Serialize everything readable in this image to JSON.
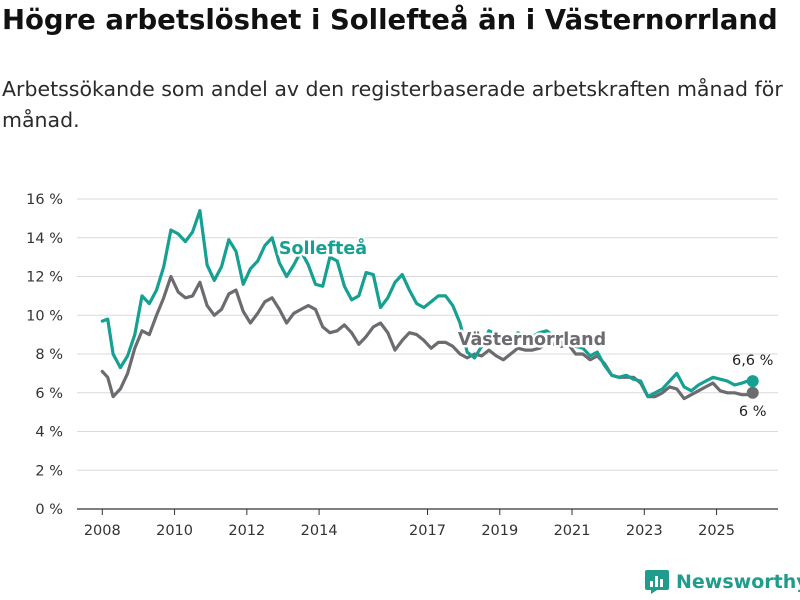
{
  "title": "Högre arbetslöshet i Sollefteå än i Västernorrland",
  "subtitle": "Arbetssökande som andel av den registerbaserade arbetskraften månad för månad.",
  "brand": {
    "name": "Newsworthy",
    "icon": "bar-chart-logo-icon"
  },
  "colors": {
    "solleftea": "#16a091",
    "vasternorrland": "#6b6b70",
    "grid": "#d9d9d9",
    "axis": "#333333"
  },
  "chart_data": {
    "type": "line",
    "title": "Högre arbetslöshet i Sollefteå än i Västernorrland",
    "xlabel": "",
    "ylabel": "",
    "ylim": [
      0,
      16
    ],
    "xlim": [
      2007.3,
      2026.7
    ],
    "y_ticks": [
      0,
      2,
      4,
      6,
      8,
      10,
      12,
      14,
      16
    ],
    "y_tick_labels": [
      "0 %",
      "2 %",
      "4 %",
      "6 %",
      "8 %",
      "10 %",
      "12 %",
      "14 %",
      "16 %"
    ],
    "x_ticks": [
      2008,
      2010,
      2012,
      2014,
      2017,
      2019,
      2021,
      2023,
      2025
    ],
    "x_tick_labels": [
      "2008",
      "2010",
      "2012",
      "2014",
      "2017",
      "2019",
      "2021",
      "2023",
      "2025"
    ],
    "grid": true,
    "series": [
      {
        "name": "Sollefteå",
        "label": "Sollefteå",
        "end_label": "6,6 %",
        "x": [
          2008.0,
          2008.15,
          2008.3,
          2008.5,
          2008.7,
          2008.9,
          2009.1,
          2009.3,
          2009.5,
          2009.7,
          2009.9,
          2010.1,
          2010.3,
          2010.5,
          2010.7,
          2010.9,
          2011.1,
          2011.3,
          2011.5,
          2011.7,
          2011.9,
          2012.1,
          2012.3,
          2012.5,
          2012.7,
          2012.9,
          2013.1,
          2013.3,
          2013.5,
          2013.7,
          2013.9,
          2014.1,
          2014.3,
          2014.5,
          2014.7,
          2014.9,
          2015.1,
          2015.3,
          2015.5,
          2015.7,
          2015.9,
          2016.1,
          2016.3,
          2016.5,
          2016.7,
          2016.9,
          2017.1,
          2017.3,
          2017.5,
          2017.7,
          2017.9,
          2018.1,
          2018.3,
          2018.5,
          2018.7,
          2018.9,
          2019.1,
          2019.3,
          2019.5,
          2019.7,
          2019.9,
          2020.1,
          2020.3,
          2020.5,
          2020.7,
          2020.9,
          2021.1,
          2021.3,
          2021.5,
          2021.7,
          2021.9,
          2022.1,
          2022.3,
          2022.5,
          2022.7,
          2022.9,
          2023.1,
          2023.3,
          2023.5,
          2023.7,
          2023.9,
          2024.1,
          2024.3,
          2024.5,
          2024.7,
          2024.9,
          2025.1,
          2025.3,
          2025.5,
          2025.7,
          2025.85,
          2026.0
        ],
        "values": [
          9.7,
          9.8,
          8.0,
          7.3,
          7.9,
          9.0,
          11.0,
          10.6,
          11.3,
          12.5,
          14.4,
          14.2,
          13.8,
          14.3,
          15.4,
          12.6,
          11.8,
          12.5,
          13.9,
          13.3,
          11.6,
          12.4,
          12.8,
          13.6,
          14.0,
          12.7,
          12.0,
          12.6,
          13.3,
          12.6,
          11.6,
          11.5,
          13.0,
          12.8,
          11.5,
          10.8,
          11.0,
          12.2,
          12.1,
          10.4,
          10.9,
          11.7,
          12.1,
          11.3,
          10.6,
          10.4,
          10.7,
          11.0,
          11.0,
          10.5,
          9.6,
          8.1,
          7.8,
          8.4,
          9.2,
          9.0,
          8.7,
          8.8,
          9.1,
          8.9,
          8.9,
          9.1,
          9.2,
          8.9,
          8.6,
          8.5,
          8.4,
          8.3,
          7.9,
          8.1,
          7.4,
          6.9,
          6.8,
          6.9,
          6.7,
          6.6,
          5.8,
          6.0,
          6.2,
          6.6,
          7.0,
          6.3,
          6.1,
          6.4,
          6.6,
          6.8,
          6.7,
          6.6,
          6.4,
          6.5,
          6.6,
          6.6
        ]
      },
      {
        "name": "Västernorrland",
        "label": "Västernorrland",
        "end_label": "6 %",
        "x": [
          2008.0,
          2008.15,
          2008.3,
          2008.5,
          2008.7,
          2008.9,
          2009.1,
          2009.3,
          2009.5,
          2009.7,
          2009.9,
          2010.1,
          2010.3,
          2010.5,
          2010.7,
          2010.9,
          2011.1,
          2011.3,
          2011.5,
          2011.7,
          2011.9,
          2012.1,
          2012.3,
          2012.5,
          2012.7,
          2012.9,
          2013.1,
          2013.3,
          2013.5,
          2013.7,
          2013.9,
          2014.1,
          2014.3,
          2014.5,
          2014.7,
          2014.9,
          2015.1,
          2015.3,
          2015.5,
          2015.7,
          2015.9,
          2016.1,
          2016.3,
          2016.5,
          2016.7,
          2016.9,
          2017.1,
          2017.3,
          2017.5,
          2017.7,
          2017.9,
          2018.1,
          2018.3,
          2018.5,
          2018.7,
          2018.9,
          2019.1,
          2019.3,
          2019.5,
          2019.7,
          2019.9,
          2020.1,
          2020.3,
          2020.5,
          2020.7,
          2020.9,
          2021.1,
          2021.3,
          2021.5,
          2021.7,
          2021.9,
          2022.1,
          2022.3,
          2022.5,
          2022.7,
          2022.9,
          2023.1,
          2023.3,
          2023.5,
          2023.7,
          2023.9,
          2024.1,
          2024.3,
          2024.5,
          2024.7,
          2024.9,
          2025.1,
          2025.3,
          2025.5,
          2025.7,
          2025.85,
          2026.0
        ],
        "values": [
          7.1,
          6.8,
          5.8,
          6.2,
          7.0,
          8.3,
          9.2,
          9.0,
          10.0,
          10.9,
          12.0,
          11.2,
          10.9,
          11.0,
          11.7,
          10.5,
          10.0,
          10.3,
          11.1,
          11.3,
          10.2,
          9.6,
          10.1,
          10.7,
          10.9,
          10.3,
          9.6,
          10.1,
          10.3,
          10.5,
          10.3,
          9.4,
          9.1,
          9.2,
          9.5,
          9.1,
          8.5,
          8.9,
          9.4,
          9.6,
          9.1,
          8.2,
          8.7,
          9.1,
          9.0,
          8.7,
          8.3,
          8.6,
          8.6,
          8.4,
          8.0,
          7.8,
          8.0,
          7.9,
          8.2,
          7.9,
          7.7,
          8.0,
          8.3,
          8.2,
          8.2,
          8.3,
          8.6,
          8.5,
          8.4,
          8.5,
          8.0,
          8.0,
          7.7,
          7.9,
          7.5,
          6.9,
          6.8,
          6.8,
          6.8,
          6.5,
          5.8,
          5.8,
          6.0,
          6.3,
          6.2,
          5.7,
          5.9,
          6.1,
          6.3,
          6.5,
          6.1,
          6.0,
          6.0,
          5.9,
          5.9,
          6.0
        ]
      }
    ]
  }
}
